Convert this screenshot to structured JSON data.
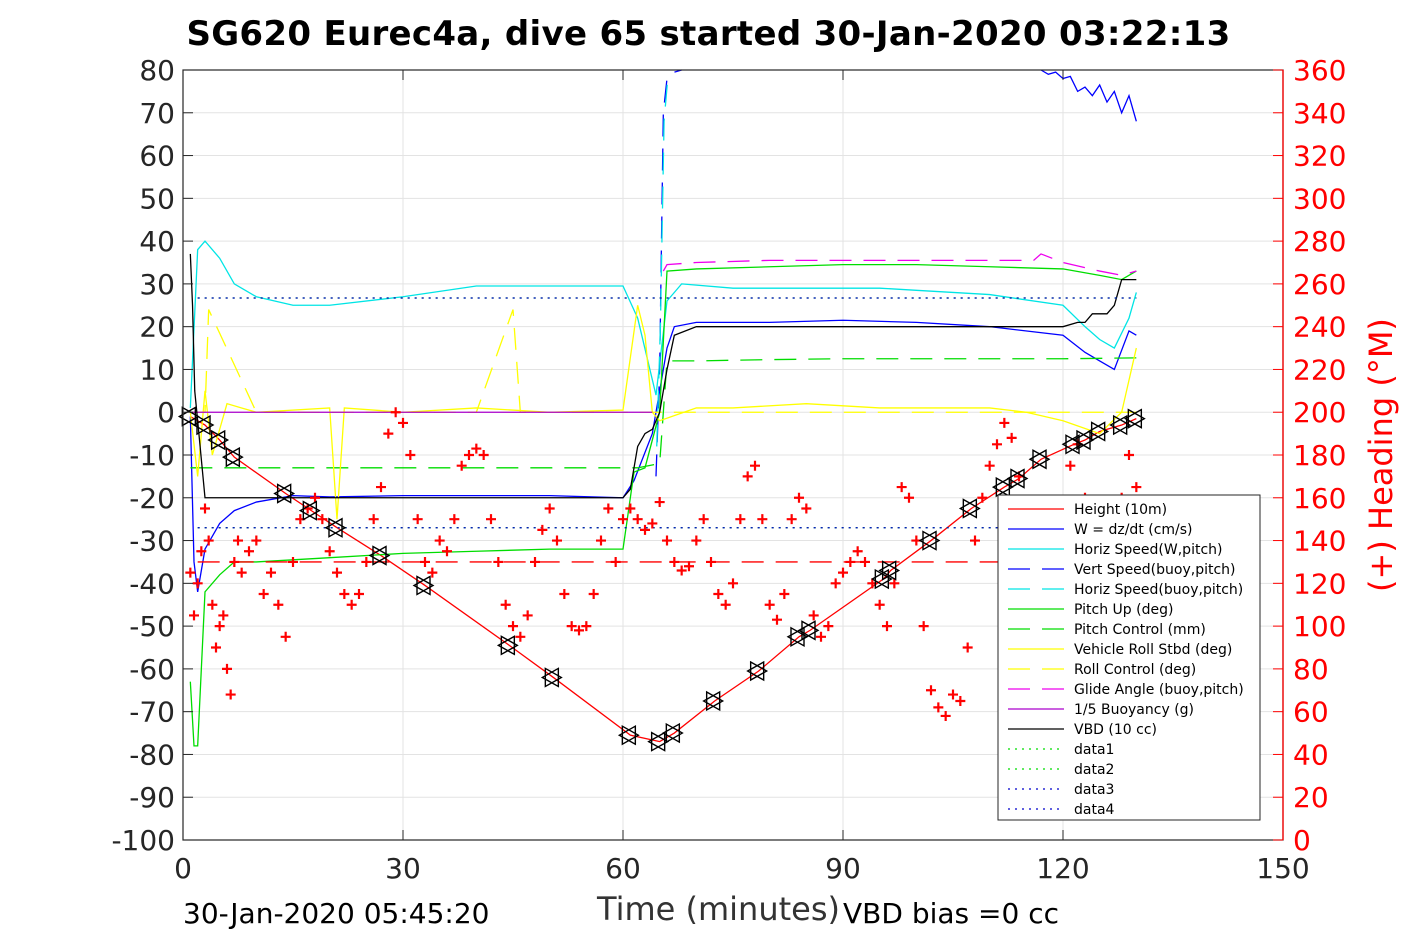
{
  "chart_data": {
    "type": "line",
    "title": "SG620 Eurec4a, dive 65 started 30-Jan-2020 03:22:13",
    "xlabel": "Time (minutes)",
    "ylabel": "",
    "y2label": "(+) Heading (°M)",
    "xlim": [
      0,
      150
    ],
    "ylim": [
      -100,
      80
    ],
    "y2lim": [
      0,
      360
    ],
    "xticks": [
      "0",
      "30",
      "60",
      "90",
      "120",
      "150"
    ],
    "yticks": [
      "80",
      "70",
      "60",
      "50",
      "40",
      "30",
      "20",
      "10",
      "0",
      "-10",
      "-20",
      "-30",
      "-40",
      "-50",
      "-60",
      "-70",
      "-80",
      "-90",
      "-100"
    ],
    "y2ticks": [
      "360",
      "340",
      "320",
      "300",
      "280",
      "260",
      "240",
      "220",
      "200",
      "180",
      "160",
      "140",
      "120",
      "100",
      "80",
      "60",
      "40",
      "20",
      "0"
    ],
    "grid": true,
    "legend_position": "lower-right",
    "colors": {
      "height": "#ff0000",
      "w": "#0000ff",
      "horiz_speed_w": "#00e5e5",
      "vert_speed_buoy": "#0000ff",
      "horiz_speed_buoy": "#00e5e5",
      "pitch_up": "#00dd00",
      "pitch_control": "#00dd00",
      "roll": "#ffff00",
      "roll_control": "#ffff00",
      "glide_angle": "#ee00ee",
      "buoyancy": "#aa00cc",
      "vbd": "#000000",
      "heading": "#ff0000",
      "data1": "#00dd00",
      "data2": "#00dd00",
      "data3": "#0000cc",
      "data4": "#0000cc"
    },
    "series": [
      {
        "name": "Height (10m)",
        "style": "solid",
        "color": "#ff0000",
        "marker": "triangle",
        "x": [
          1,
          3,
          5,
          7,
          14,
          17.5,
          21,
          27,
          33,
          44.5,
          50.5,
          61,
          65,
          67,
          72.5,
          78.5,
          84,
          85.5,
          95.5,
          96.5,
          102,
          107.5,
          112,
          114,
          117,
          121.5,
          123,
          125,
          128,
          130
        ],
        "y": [
          -1,
          -3,
          -6.5,
          -10.5,
          -19,
          -23,
          -27,
          -33.5,
          -40.5,
          -54.5,
          -62,
          -75.5,
          -77,
          -75,
          -67.5,
          -60.5,
          -52.5,
          -51,
          -39,
          -37,
          -30,
          -22.5,
          -17.5,
          -15.5,
          -11,
          -7.5,
          -6.5,
          -4.5,
          -3,
          -1.5
        ]
      },
      {
        "name": "W = dz/dt (cm/s)",
        "style": "solid",
        "color": "#0000ff",
        "x": [
          1,
          1.5,
          2,
          3,
          5,
          7,
          10,
          15,
          20,
          30,
          40,
          50,
          60,
          61.5,
          64,
          66,
          67,
          70,
          80,
          90,
          100,
          110,
          120,
          123,
          125,
          127,
          129,
          130
        ],
        "y": [
          -1,
          -35,
          -42,
          -32,
          -26,
          -23,
          -21,
          -19.5,
          -19.8,
          -19.5,
          -19.5,
          -19.5,
          -20,
          -16,
          -5,
          15,
          20,
          21,
          21,
          21.5,
          21,
          20,
          18,
          14,
          12,
          10,
          19,
          18
        ]
      },
      {
        "name": "Horiz Speed(W,pitch)",
        "style": "solid",
        "color": "#00e5e5",
        "x": [
          1,
          2,
          3,
          5,
          7,
          10,
          15,
          20,
          30,
          40,
          50,
          55,
          60,
          62,
          64.5,
          66,
          68,
          75,
          85,
          95,
          100,
          110,
          120,
          123,
          125,
          127,
          129,
          130
        ],
        "y": [
          1,
          38,
          40,
          36,
          30,
          27,
          25,
          25,
          27,
          29.5,
          29.5,
          29.5,
          29.5,
          22,
          4,
          26,
          30,
          29,
          29,
          29,
          28.5,
          27.5,
          25,
          20,
          17,
          15,
          22,
          28
        ]
      },
      {
        "name": "Vert Speed(buoy,pitch)",
        "style": "dashed",
        "color": "#0000ff",
        "x": [
          64.5,
          65,
          65.5,
          66,
          67,
          68
        ],
        "y": [
          -15,
          10,
          70,
          78,
          79.5,
          80
        ]
      },
      {
        "name": "Horiz Speed(buoy,pitch)",
        "style": "dashed",
        "color": "#00e5e5",
        "x": [
          64.6,
          65.1,
          65.6,
          66.1
        ],
        "y": [
          -8,
          20,
          68,
          78
        ]
      },
      {
        "name": "Pitch Up (deg)",
        "style": "solid",
        "color": "#00dd00",
        "x": [
          1,
          1.5,
          2,
          3,
          5,
          7,
          10,
          20,
          30,
          40,
          50,
          60,
          61,
          61.5,
          63,
          65,
          66,
          70,
          80,
          90,
          100,
          110,
          120,
          125,
          128,
          130
        ],
        "y": [
          -63,
          -78,
          -78,
          -42,
          -38,
          -35,
          -35,
          -34,
          -33,
          -32.5,
          -32,
          -32,
          -20,
          -14,
          -13,
          0,
          33,
          33.5,
          34,
          34.5,
          34.5,
          34,
          33.5,
          32,
          31,
          33
        ]
      },
      {
        "name": "Pitch Control (mm)",
        "style": "dashed",
        "color": "#00dd00",
        "x": [
          1,
          2,
          62,
          65,
          66,
          70,
          80,
          90,
          100,
          110,
          120,
          130
        ],
        "y": [
          -13,
          -13,
          -13,
          -12,
          12,
          12,
          12.3,
          12.5,
          12.5,
          12.5,
          12.5,
          12.7
        ]
      },
      {
        "name": "Vehicle Roll Stbd (deg)",
        "style": "solid",
        "color": "#ffff00",
        "x": [
          1,
          2,
          3,
          4,
          6,
          8,
          10,
          20,
          21,
          22,
          30,
          40,
          50,
          60,
          62,
          63,
          64,
          65,
          70,
          75,
          85,
          95,
          100,
          110,
          115,
          120,
          125,
          128,
          130
        ],
        "y": [
          0,
          -15,
          5,
          -10,
          2,
          1,
          0,
          1,
          -25,
          1,
          0,
          1,
          0,
          0.5,
          25,
          18,
          0,
          -2,
          1,
          1,
          2,
          1,
          1,
          1,
          0,
          -2,
          -5,
          0,
          15
        ]
      },
      {
        "name": "Roll Control (deg)",
        "style": "dashed",
        "color": "#ffff00",
        "x": [
          1,
          3,
          3.5,
          10,
          20,
          30,
          40,
          45,
          46,
          50,
          60,
          70,
          80,
          90,
          100,
          110,
          120,
          130
        ],
        "y": [
          0,
          0,
          24,
          0,
          0,
          0,
          0,
          24,
          0,
          0,
          0,
          0,
          0,
          0,
          0,
          0,
          0,
          0
        ]
      },
      {
        "name": "Glide Angle (buoy,pitch)",
        "style": "dashed",
        "color": "#ee00ee",
        "x": [
          65.5,
          66,
          70,
          80,
          90,
          100,
          110,
          116,
          117,
          120,
          125,
          128,
          130
        ],
        "y": [
          33,
          34.5,
          35,
          35.5,
          35.5,
          35.5,
          35.5,
          35.5,
          37,
          35,
          33,
          32,
          33
        ]
      },
      {
        "name": "1/5 Buoyancy (g)",
        "style": "solid",
        "color": "#aa00cc",
        "x": [
          1,
          10,
          20,
          30,
          40,
          50,
          60,
          62,
          64
        ],
        "y": [
          0,
          0,
          0,
          0,
          0,
          0,
          0,
          0,
          0
        ]
      },
      {
        "name": "VBD (10 cc)",
        "style": "solid",
        "color": "#000000",
        "x": [
          1,
          1.3,
          1.6,
          2,
          3,
          10,
          20,
          30,
          40,
          50,
          60,
          61,
          62,
          63,
          64,
          65,
          66,
          67,
          70,
          80,
          90,
          100,
          110,
          120,
          122,
          123,
          124,
          126,
          127,
          128,
          130
        ],
        "y": [
          37,
          25,
          5,
          -2,
          -20,
          -20,
          -20,
          -20,
          -20,
          -20,
          -20,
          -18,
          -8,
          -5,
          -4,
          0,
          10,
          18,
          20,
          20,
          20,
          20,
          20,
          20,
          21,
          21,
          23,
          23,
          25,
          31,
          31
        ]
      },
      {
        "name": "data1",
        "style": "dotted",
        "color": "#00dd00",
        "x": [
          2,
          130
        ],
        "y": [
          26.7,
          26.7
        ]
      },
      {
        "name": "data2",
        "style": "dotted",
        "color": "#00dd00",
        "x": [
          2,
          130
        ],
        "y": [
          -27,
          -27
        ]
      },
      {
        "name": "data3",
        "style": "dotted",
        "color": "#0000cc",
        "x": [
          2,
          130
        ],
        "y": [
          26.7,
          26.7
        ]
      },
      {
        "name": "data4",
        "style": "dotted",
        "color": "#0000cc",
        "x": [
          2,
          130
        ],
        "y": [
          -27,
          -27
        ]
      },
      {
        "name": "",
        "style": "dashed",
        "color": "#ff0000",
        "x": [
          2,
          130
        ],
        "y": [
          -35,
          -35
        ]
      },
      {
        "name": "",
        "style": "solid",
        "color": "#0000ff",
        "axis": "y2",
        "x": [
          117,
          118,
          119,
          120,
          121,
          122,
          123,
          124,
          125,
          126,
          127,
          128,
          129,
          130
        ],
        "y": [
          360,
          358,
          359,
          356,
          357,
          350,
          352,
          348,
          353,
          345,
          350,
          340,
          348,
          336
        ]
      }
    ],
    "heading": {
      "name": "(+) Heading",
      "axis": "y2",
      "marker": "+",
      "color": "#ff0000",
      "x": [
        1,
        1.5,
        2,
        2.5,
        3,
        3.5,
        4,
        4.5,
        5,
        5.5,
        6,
        6.5,
        7,
        7.5,
        8,
        9,
        10,
        11,
        12,
        13,
        14,
        15,
        16,
        17,
        18,
        19,
        20,
        21,
        22,
        23,
        24,
        25,
        26,
        27,
        28,
        29,
        30,
        31,
        32,
        33,
        34,
        35,
        36,
        37,
        38,
        39,
        40,
        41,
        42,
        43,
        44,
        45,
        46,
        47,
        48,
        49,
        50,
        51,
        52,
        53,
        54,
        55,
        56,
        57,
        58,
        59,
        60,
        61,
        62,
        63,
        64,
        65,
        66,
        67,
        68,
        69,
        70,
        71,
        72,
        73,
        74,
        75,
        76,
        77,
        78,
        79,
        80,
        81,
        82,
        83,
        84,
        85,
        86,
        87,
        88,
        89,
        90,
        91,
        92,
        93,
        94,
        95,
        96,
        97,
        98,
        99,
        100,
        101,
        102,
        103,
        104,
        105,
        106,
        107,
        108,
        109,
        110,
        111,
        112,
        113,
        114,
        115,
        116,
        117,
        118,
        119,
        120,
        121,
        122,
        123,
        124,
        125,
        126,
        127,
        128,
        129,
        130
      ],
      "y": [
        125,
        105,
        120,
        135,
        155,
        140,
        110,
        90,
        100,
        105,
        80,
        68,
        130,
        140,
        125,
        135,
        140,
        115,
        125,
        110,
        95,
        130,
        150,
        155,
        160,
        150,
        135,
        125,
        115,
        110,
        115,
        130,
        150,
        165,
        190,
        200,
        195,
        180,
        150,
        130,
        125,
        140,
        135,
        150,
        175,
        180,
        183,
        180,
        150,
        130,
        110,
        100,
        95,
        105,
        130,
        145,
        155,
        140,
        115,
        100,
        98,
        100,
        115,
        140,
        155,
        130,
        150,
        155,
        150,
        145,
        148,
        158,
        140,
        130,
        126,
        128,
        140,
        150,
        130,
        115,
        110,
        120,
        150,
        170,
        175,
        150,
        110,
        103,
        115,
        150,
        160,
        155,
        105,
        95,
        100,
        120,
        125,
        130,
        135,
        130,
        120,
        110,
        100,
        120,
        165,
        160,
        140,
        100,
        70,
        62,
        58,
        68,
        65,
        90,
        140,
        160,
        175,
        185,
        195,
        188,
        170,
        140,
        110,
        100,
        105,
        90,
        130,
        175,
        185,
        160,
        140,
        130,
        125,
        150,
        160,
        180,
        165
      ]
    },
    "legend_entries": [
      "Height (10m)",
      "W = dz/dt (cm/s)",
      "Horiz Speed(W,pitch)",
      "Vert Speed(buoy,pitch)",
      "Horiz Speed(buoy,pitch)",
      "Pitch Up (deg)",
      "Pitch Control (mm)",
      "Vehicle Roll Stbd (deg)",
      "Roll Control (deg)",
      "Glide Angle (buoy,pitch)",
      "1/5 Buoyancy (g)",
      "VBD (10 cc)",
      "data1",
      "data2",
      "data3",
      "data4"
    ]
  },
  "footer": {
    "timestamp": "30-Jan-2020 05:45:20",
    "vbd_bias": "VBD bias =0 cc"
  }
}
